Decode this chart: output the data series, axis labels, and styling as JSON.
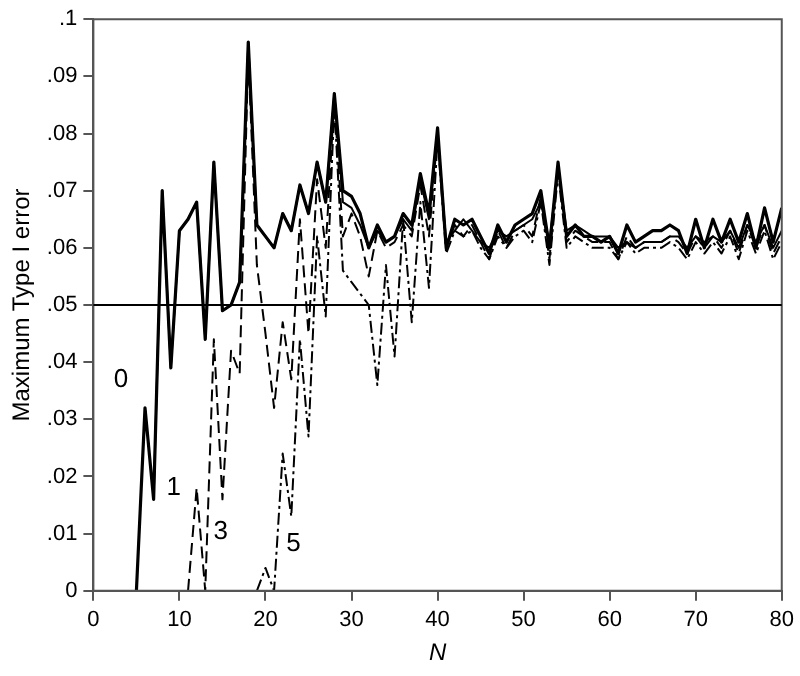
{
  "chart_data": {
    "type": "line",
    "xlabel": "N",
    "ylabel": "Maximum Type I error",
    "x": [
      5,
      6,
      7,
      8,
      9,
      10,
      11,
      12,
      13,
      14,
      15,
      16,
      17,
      18,
      19,
      20,
      21,
      22,
      23,
      24,
      25,
      26,
      27,
      28,
      29,
      30,
      31,
      32,
      33,
      34,
      35,
      36,
      37,
      38,
      39,
      40,
      41,
      42,
      43,
      44,
      45,
      46,
      47,
      48,
      49,
      50,
      51,
      52,
      53,
      54,
      55,
      56,
      57,
      58,
      59,
      60,
      61,
      62,
      63,
      64,
      65,
      66,
      67,
      68,
      69,
      70,
      71,
      72,
      73,
      74,
      75,
      76,
      77,
      78,
      79,
      80
    ],
    "series": [
      {
        "name": "0",
        "color": "#000000",
        "line_style": "solid",
        "values": [
          0,
          0.032,
          0.016,
          0.07,
          0.039,
          0.063,
          0.065,
          0.068,
          0.044,
          0.075,
          0.049,
          0.05,
          0.054,
          0.096,
          0.064,
          0.062,
          0.06,
          0.066,
          0.063,
          0.071,
          0.066,
          0.075,
          0.068,
          0.087,
          0.07,
          0.069,
          0.066,
          0.06,
          0.064,
          0.061,
          0.062,
          0.066,
          0.064,
          0.073,
          0.066,
          0.081,
          0.06,
          0.065,
          0.064,
          0.065,
          0.062,
          0.059,
          0.064,
          0.061,
          0.064,
          0.065,
          0.066,
          0.07,
          0.06,
          0.075,
          0.062,
          0.064,
          0.062,
          0.062,
          0.061,
          0.062,
          0.059,
          0.064,
          0.061,
          0.062,
          0.063,
          0.063,
          0.064,
          0.063,
          0.059,
          0.065,
          0.06,
          0.065,
          0.061,
          0.065,
          0.061,
          0.066,
          0.06,
          0.067,
          0.061,
          0.067
        ]
      },
      {
        "name": "1",
        "color": "#000000",
        "line_style": "solid",
        "values": [
          null,
          null,
          0.016,
          0.07,
          0.039,
          0.063,
          0.065,
          0.068,
          0.044,
          0.075,
          0.049,
          0.05,
          0.054,
          0.096,
          0.064,
          0.062,
          0.06,
          0.066,
          0.063,
          0.071,
          0.066,
          0.075,
          0.068,
          0.087,
          0.068,
          0.067,
          0.064,
          0.06,
          0.063,
          0.061,
          0.062,
          0.065,
          0.063,
          0.072,
          0.065,
          0.08,
          0.061,
          0.063,
          0.065,
          0.063,
          0.061,
          0.06,
          0.063,
          0.062,
          0.063,
          0.064,
          0.065,
          0.068,
          0.061,
          0.074,
          0.063,
          0.064,
          0.063,
          0.062,
          0.062,
          0.062,
          0.06,
          0.061,
          0.06,
          0.061,
          0.061,
          0.061,
          0.062,
          0.062,
          0.06,
          0.062,
          0.061,
          0.062,
          0.061,
          0.063,
          0.06,
          0.064,
          0.061,
          0.064,
          0.06,
          0.063
        ]
      },
      {
        "name": "3",
        "color": "#000000",
        "line_style": "dashed",
        "values": [
          null,
          null,
          null,
          null,
          null,
          null,
          0,
          0.018,
          0,
          0.044,
          0.016,
          0.042,
          0.038,
          0.094,
          0.057,
          0.045,
          0.032,
          0.047,
          0.037,
          0.065,
          0.045,
          0.072,
          0.06,
          0.086,
          0.062,
          0.066,
          0.062,
          0.055,
          0.063,
          0.06,
          0.061,
          0.064,
          0.062,
          0.071,
          0.062,
          0.08,
          0.06,
          0.064,
          0.062,
          0.064,
          0.061,
          0.058,
          0.063,
          0.06,
          0.063,
          0.064,
          0.062,
          0.069,
          0.058,
          0.074,
          0.061,
          0.063,
          0.062,
          0.061,
          0.061,
          0.061,
          0.058,
          0.062,
          0.06,
          0.061,
          0.061,
          0.061,
          0.062,
          0.061,
          0.059,
          0.062,
          0.06,
          0.062,
          0.06,
          0.063,
          0.059,
          0.064,
          0.06,
          0.064,
          0.059,
          0.062
        ]
      },
      {
        "name": "5",
        "color": "#000000",
        "line_style": "dashdot",
        "values": [
          null,
          null,
          null,
          null,
          null,
          null,
          null,
          null,
          null,
          null,
          null,
          null,
          null,
          null,
          0,
          0.004,
          0,
          0.024,
          0.013,
          0.044,
          0.027,
          0.062,
          0.048,
          0.085,
          0.056,
          0.054,
          0.052,
          0.05,
          0.036,
          0.057,
          0.041,
          0.065,
          0.047,
          0.068,
          0.053,
          0.079,
          0.059,
          0.063,
          0.062,
          0.063,
          0.06,
          0.058,
          0.062,
          0.06,
          0.062,
          0.063,
          0.061,
          0.068,
          0.057,
          0.073,
          0.06,
          0.062,
          0.061,
          0.06,
          0.06,
          0.06,
          0.058,
          0.061,
          0.059,
          0.06,
          0.06,
          0.06,
          0.061,
          0.06,
          0.058,
          0.061,
          0.059,
          0.061,
          0.059,
          0.062,
          0.058,
          0.063,
          0.059,
          0.063,
          0.058,
          0.061
        ]
      }
    ],
    "xlim": [
      0,
      80
    ],
    "xticks": [
      0,
      10,
      20,
      30,
      40,
      50,
      60,
      70,
      80
    ],
    "ylim": [
      0,
      0.1
    ],
    "yticks": [
      0,
      {
        "value": 0.01,
        "label": ".01"
      },
      {
        "value": 0.02,
        "label": ".02"
      },
      {
        "value": 0.03,
        "label": ".03"
      },
      {
        "value": 0.04,
        "label": ".04"
      },
      {
        "value": 0.05,
        "label": ".05"
      },
      {
        "value": 0.06,
        "label": ".06"
      },
      {
        "value": 0.07,
        "label": ".07"
      },
      {
        "value": 0.08,
        "label": ".08"
      },
      {
        "value": 0.09,
        "label": ".09"
      },
      {
        "value": 0.1,
        "label": ".1"
      }
    ],
    "ref_lines": [
      {
        "axis": "y",
        "value": 0.05,
        "color": "#000000",
        "line_style": "solid"
      }
    ],
    "grid": false,
    "legend": false,
    "marker": "none"
  }
}
